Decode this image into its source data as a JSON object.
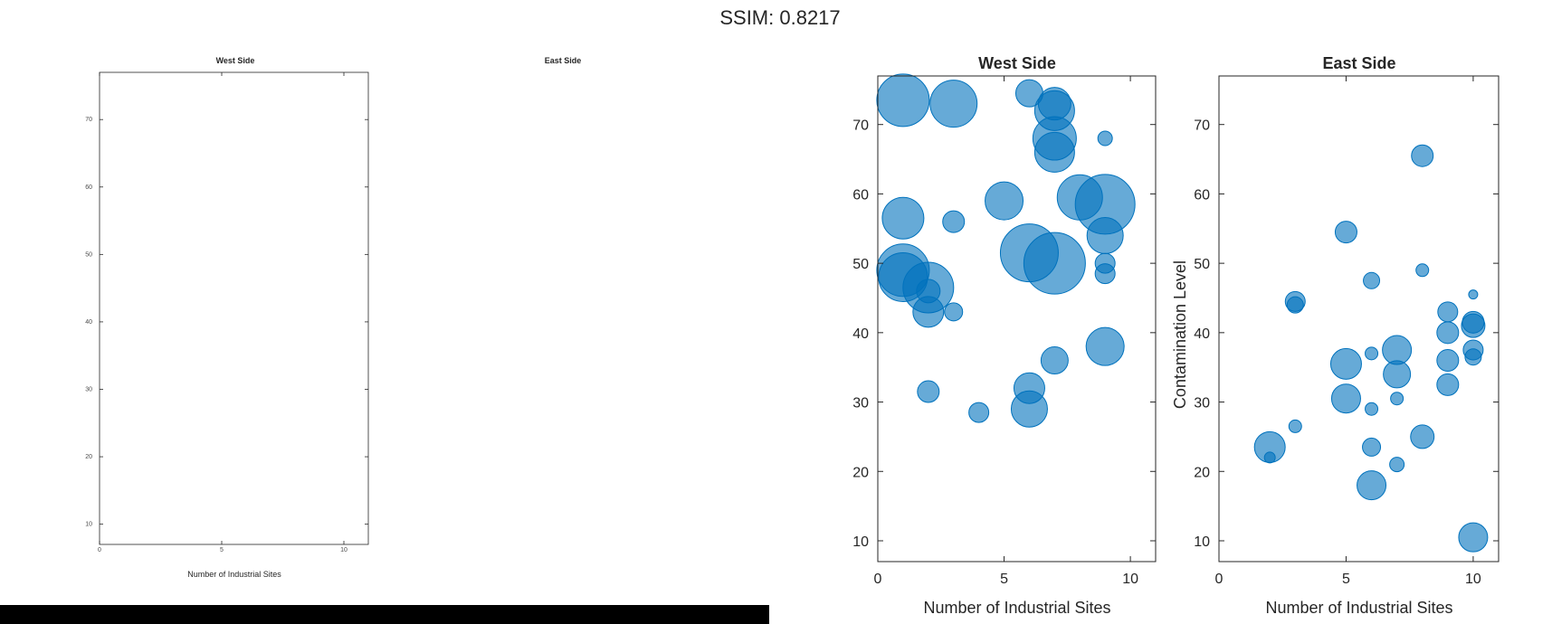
{
  "header": {
    "ssim_text": "SSIM: 0.8217"
  },
  "chart_data": [
    {
      "type": "scatter",
      "panel": "left-small",
      "title": "West Side",
      "xlabel": "Number of Industrial Sites",
      "ylabel": "",
      "xlim": [
        0,
        11
      ],
      "ylim": [
        7,
        77
      ],
      "xticks": [
        0,
        5,
        10
      ],
      "yticks": [
        10,
        20,
        30,
        40,
        50,
        60,
        70
      ],
      "points": []
    },
    {
      "type": "scatter",
      "panel": "left-small-label",
      "title": "East Side",
      "points": []
    },
    {
      "type": "scatter",
      "panel": "right-west",
      "title": "West Side",
      "xlabel": "Number of Industrial Sites",
      "ylabel": "",
      "xlim": [
        0,
        11
      ],
      "ylim": [
        7,
        77
      ],
      "xticks": [
        0,
        5,
        10
      ],
      "yticks": [
        10,
        20,
        30,
        40,
        50,
        60,
        70
      ],
      "points": [
        {
          "x": 1,
          "y": 73.5,
          "size": 29
        },
        {
          "x": 3,
          "y": 73,
          "size": 26
        },
        {
          "x": 6,
          "y": 74.5,
          "size": 15
        },
        {
          "x": 7,
          "y": 73,
          "size": 18
        },
        {
          "x": 7,
          "y": 72,
          "size": 22
        },
        {
          "x": 7,
          "y": 68,
          "size": 24
        },
        {
          "x": 7,
          "y": 66,
          "size": 22
        },
        {
          "x": 9,
          "y": 68,
          "size": 8
        },
        {
          "x": 1,
          "y": 56.5,
          "size": 23
        },
        {
          "x": 3,
          "y": 56,
          "size": 12
        },
        {
          "x": 5,
          "y": 59,
          "size": 21
        },
        {
          "x": 8,
          "y": 59.5,
          "size": 25
        },
        {
          "x": 9,
          "y": 58.5,
          "size": 33
        },
        {
          "x": 9,
          "y": 54,
          "size": 20
        },
        {
          "x": 1,
          "y": 49,
          "size": 29
        },
        {
          "x": 1,
          "y": 48,
          "size": 27
        },
        {
          "x": 2,
          "y": 46.5,
          "size": 28
        },
        {
          "x": 2,
          "y": 46,
          "size": 13
        },
        {
          "x": 2,
          "y": 43,
          "size": 17
        },
        {
          "x": 3,
          "y": 43,
          "size": 10
        },
        {
          "x": 6,
          "y": 51.5,
          "size": 32
        },
        {
          "x": 7,
          "y": 50,
          "size": 34
        },
        {
          "x": 9,
          "y": 50,
          "size": 11
        },
        {
          "x": 9,
          "y": 48.5,
          "size": 11
        },
        {
          "x": 7,
          "y": 36,
          "size": 15
        },
        {
          "x": 9,
          "y": 38,
          "size": 21
        },
        {
          "x": 2,
          "y": 31.5,
          "size": 12
        },
        {
          "x": 4,
          "y": 28.5,
          "size": 11
        },
        {
          "x": 6,
          "y": 32,
          "size": 17
        },
        {
          "x": 6,
          "y": 29,
          "size": 20
        }
      ]
    },
    {
      "type": "scatter",
      "panel": "right-east",
      "title": "East Side",
      "xlabel": "Number of Industrial Sites",
      "ylabel": "Contamination Level",
      "xlim": [
        0,
        11
      ],
      "ylim": [
        7,
        77
      ],
      "xticks": [
        0,
        5,
        10
      ],
      "yticks": [
        10,
        20,
        30,
        40,
        50,
        60,
        70
      ],
      "points": [
        {
          "x": 8,
          "y": 65.5,
          "size": 12
        },
        {
          "x": 5,
          "y": 54.5,
          "size": 12
        },
        {
          "x": 6,
          "y": 47.5,
          "size": 9
        },
        {
          "x": 8,
          "y": 49,
          "size": 7
        },
        {
          "x": 10,
          "y": 45.5,
          "size": 5
        },
        {
          "x": 3,
          "y": 44.5,
          "size": 11
        },
        {
          "x": 3,
          "y": 44,
          "size": 9
        },
        {
          "x": 9,
          "y": 43,
          "size": 11
        },
        {
          "x": 10,
          "y": 41.5,
          "size": 12
        },
        {
          "x": 10,
          "y": 41,
          "size": 13
        },
        {
          "x": 9,
          "y": 40,
          "size": 12
        },
        {
          "x": 7,
          "y": 37.5,
          "size": 16
        },
        {
          "x": 6,
          "y": 37,
          "size": 7
        },
        {
          "x": 10,
          "y": 37.5,
          "size": 11
        },
        {
          "x": 10,
          "y": 36.5,
          "size": 9
        },
        {
          "x": 9,
          "y": 36,
          "size": 12
        },
        {
          "x": 5,
          "y": 35.5,
          "size": 17
        },
        {
          "x": 7,
          "y": 34,
          "size": 15
        },
        {
          "x": 9,
          "y": 32.5,
          "size": 12
        },
        {
          "x": 5,
          "y": 30.5,
          "size": 16
        },
        {
          "x": 7,
          "y": 30.5,
          "size": 7
        },
        {
          "x": 6,
          "y": 29,
          "size": 7
        },
        {
          "x": 3,
          "y": 26.5,
          "size": 7
        },
        {
          "x": 8,
          "y": 25,
          "size": 13
        },
        {
          "x": 2,
          "y": 23.5,
          "size": 17
        },
        {
          "x": 6,
          "y": 23.5,
          "size": 10
        },
        {
          "x": 2,
          "y": 22,
          "size": 6
        },
        {
          "x": 7,
          "y": 21,
          "size": 8
        },
        {
          "x": 6,
          "y": 18,
          "size": 16
        },
        {
          "x": 10,
          "y": 10.5,
          "size": 16
        }
      ]
    }
  ],
  "colors": {
    "bubble": "#0072bd",
    "axis": "#262626",
    "footer_bar": "#000000"
  }
}
